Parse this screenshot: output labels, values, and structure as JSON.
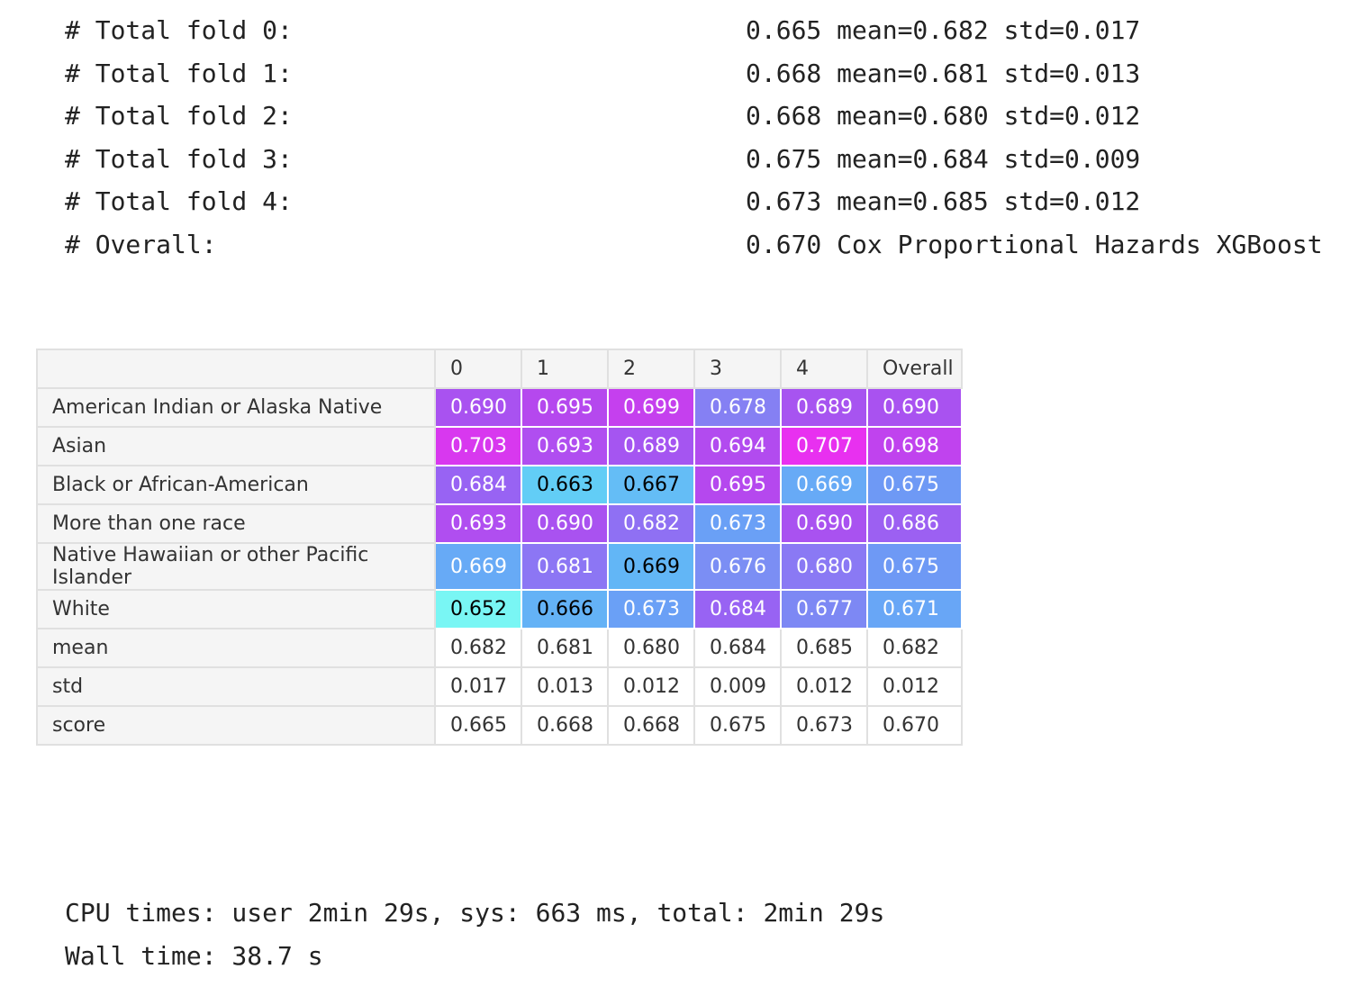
{
  "log": [
    {
      "label": "# Total fold 0:",
      "value": "0.665 mean=0.682 std=0.017"
    },
    {
      "label": "# Total fold 1:",
      "value": "0.668 mean=0.681 std=0.013"
    },
    {
      "label": "# Total fold 2:",
      "value": "0.668 mean=0.680 std=0.012"
    },
    {
      "label": "# Total fold 3:",
      "value": "0.675 mean=0.684 std=0.009"
    },
    {
      "label": "# Total fold 4:",
      "value": "0.673 mean=0.685 std=0.012"
    },
    {
      "label": "# Overall:",
      "value": "0.670 Cox Proportional Hazards XGBoost"
    }
  ],
  "table": {
    "columns": [
      "0",
      "1",
      "2",
      "3",
      "4",
      "Overall"
    ],
    "rows": [
      {
        "label": "American Indian or Alaska Native",
        "cells": [
          {
            "v": "0.690",
            "bg": "#a952f0",
            "fg": "#ffffff"
          },
          {
            "v": "0.695",
            "bg": "#b548ee",
            "fg": "#ffffff"
          },
          {
            "v": "0.699",
            "bg": "#c540ee",
            "fg": "#ffffff"
          },
          {
            "v": "0.678",
            "bg": "#8580f3",
            "fg": "#ffffff"
          },
          {
            "v": "0.689",
            "bg": "#a754f0",
            "fg": "#ffffff"
          },
          {
            "v": "0.690",
            "bg": "#a952f0",
            "fg": "#ffffff"
          }
        ]
      },
      {
        "label": "Asian",
        "cells": [
          {
            "v": "0.703",
            "bg": "#d838ef",
            "fg": "#ffffff"
          },
          {
            "v": "0.693",
            "bg": "#b04ef0",
            "fg": "#ffffff"
          },
          {
            "v": "0.689",
            "bg": "#a555f1",
            "fg": "#ffffff"
          },
          {
            "v": "0.694",
            "bg": "#b24bef",
            "fg": "#ffffff"
          },
          {
            "v": "0.707",
            "bg": "#e830f0",
            "fg": "#ffffff"
          },
          {
            "v": "0.698",
            "bg": "#c043ee",
            "fg": "#ffffff"
          }
        ]
      },
      {
        "label": "Black or African-American",
        "cells": [
          {
            "v": "0.684",
            "bg": "#9863f3",
            "fg": "#ffffff"
          },
          {
            "v": "0.663",
            "bg": "#62cdf6",
            "fg": "#000000"
          },
          {
            "v": "0.667",
            "bg": "#64bdf6",
            "fg": "#000000"
          },
          {
            "v": "0.695",
            "bg": "#b548ee",
            "fg": "#ffffff"
          },
          {
            "v": "0.669",
            "bg": "#67aaf6",
            "fg": "#ffffff"
          },
          {
            "v": "0.675",
            "bg": "#6e99f5",
            "fg": "#ffffff"
          }
        ]
      },
      {
        "label": "More than one race",
        "cells": [
          {
            "v": "0.693",
            "bg": "#b04ef0",
            "fg": "#ffffff"
          },
          {
            "v": "0.690",
            "bg": "#a952f0",
            "fg": "#ffffff"
          },
          {
            "v": "0.682",
            "bg": "#8f70f3",
            "fg": "#ffffff"
          },
          {
            "v": "0.673",
            "bg": "#6aa0f6",
            "fg": "#ffffff"
          },
          {
            "v": "0.690",
            "bg": "#a952f0",
            "fg": "#ffffff"
          },
          {
            "v": "0.686",
            "bg": "#9c60f2",
            "fg": "#ffffff"
          }
        ]
      },
      {
        "label": "Native Hawaiian or other Pacific Islander",
        "cells": [
          {
            "v": "0.669",
            "bg": "#67aaf6",
            "fg": "#ffffff"
          },
          {
            "v": "0.681",
            "bg": "#8c76f4",
            "fg": "#ffffff"
          },
          {
            "v": "0.669",
            "bg": "#62b6f6",
            "fg": "#000000"
          },
          {
            "v": "0.676",
            "bg": "#7b8ef4",
            "fg": "#ffffff"
          },
          {
            "v": "0.680",
            "bg": "#8a79f4",
            "fg": "#ffffff"
          },
          {
            "v": "0.675",
            "bg": "#6e99f5",
            "fg": "#ffffff"
          }
        ]
      },
      {
        "label": "White",
        "cells": [
          {
            "v": "0.652",
            "bg": "#79f6f4",
            "fg": "#000000"
          },
          {
            "v": "0.666",
            "bg": "#64b2f6",
            "fg": "#000000"
          },
          {
            "v": "0.673",
            "bg": "#6aa0f6",
            "fg": "#ffffff"
          },
          {
            "v": "0.684",
            "bg": "#9863f3",
            "fg": "#ffffff"
          },
          {
            "v": "0.677",
            "bg": "#7d88f4",
            "fg": "#ffffff"
          },
          {
            "v": "0.671",
            "bg": "#68a6f6",
            "fg": "#ffffff"
          }
        ]
      },
      {
        "label": "mean",
        "cells": [
          {
            "v": "0.682"
          },
          {
            "v": "0.681"
          },
          {
            "v": "0.680"
          },
          {
            "v": "0.684"
          },
          {
            "v": "0.685"
          },
          {
            "v": "0.682"
          }
        ]
      },
      {
        "label": "std",
        "cells": [
          {
            "v": "0.017"
          },
          {
            "v": "0.013"
          },
          {
            "v": "0.012"
          },
          {
            "v": "0.009"
          },
          {
            "v": "0.012"
          },
          {
            "v": "0.012"
          }
        ]
      },
      {
        "label": "score",
        "cells": [
          {
            "v": "0.665"
          },
          {
            "v": "0.668"
          },
          {
            "v": "0.668"
          },
          {
            "v": "0.675"
          },
          {
            "v": "0.673"
          },
          {
            "v": "0.670"
          }
        ]
      }
    ]
  },
  "timing": {
    "cpu": "CPU times: user 2min 29s, sys: 663 ms, total: 2min 29s",
    "wall": "Wall time: 38.7 s"
  }
}
